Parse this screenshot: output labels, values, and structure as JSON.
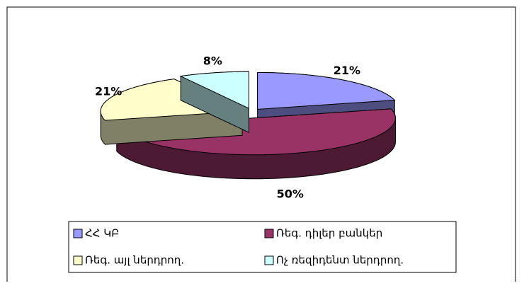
{
  "chart_data": {
    "type": "pie3d",
    "categories": [
      "ՀՀ ԿԲ",
      "Ռեգ. դիլեր բանկեր",
      "Ռեգ. այլ ներդրող.",
      "Ոչ ռեզիդենտ ներդրող."
    ],
    "values": [
      21,
      50,
      21,
      8
    ],
    "value_labels": [
      "21%",
      "50%",
      "21%",
      "8%"
    ],
    "colors": [
      "#9999ff",
      "#993366",
      "#ffffcc",
      "#ccffff"
    ],
    "legend": "bottom"
  }
}
